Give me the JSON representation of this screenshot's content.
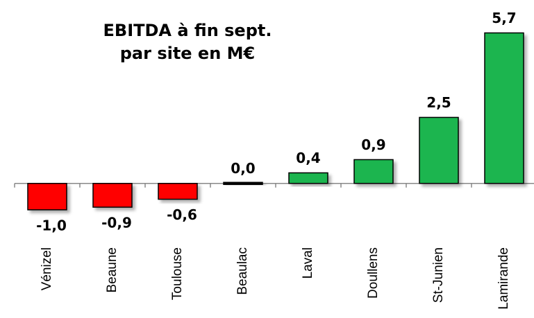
{
  "chart_data": {
    "type": "bar",
    "title": [
      "EBITDA à fin sept.",
      "par site en M€"
    ],
    "categories": [
      "Vénizel",
      "Beaune",
      "Toulouse",
      "Beaulac",
      "Laval",
      "Doullens",
      "St-Junien",
      "Lamirande"
    ],
    "values": [
      -1.0,
      -0.9,
      -0.6,
      0.0,
      0.4,
      0.9,
      2.5,
      5.7
    ],
    "value_labels": [
      "-1,0",
      "-0,9",
      "-0,6",
      "0,0",
      "0,4",
      "0,9",
      "2,5",
      "5,7"
    ],
    "colors": [
      "#ff0000",
      "#ff0000",
      "#ff0000",
      "#000000",
      "#1db550",
      "#1db550",
      "#1db550",
      "#1db550"
    ],
    "ylim": [
      -2.5,
      6.5
    ]
  }
}
